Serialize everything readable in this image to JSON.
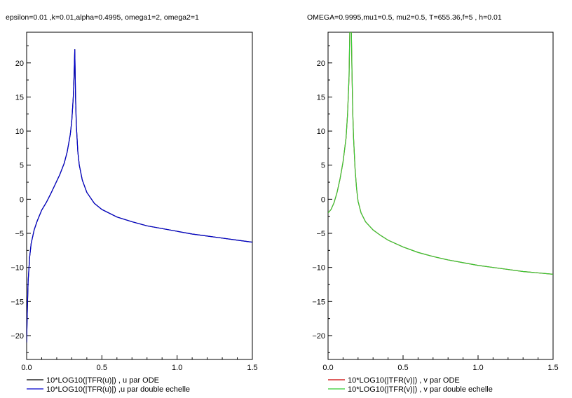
{
  "chart_data": [
    {
      "type": "line",
      "title": "epsilon=0.01 ,k=0.01,alpha=0.4995, omega1=2, omega2=1",
      "xlim": [
        0,
        1.5
      ],
      "ylim": [
        -23.5,
        24.5
      ],
      "x_ticks": [
        0.0,
        0.5,
        1.0,
        1.5
      ],
      "x_tick_labels": [
        "0.0",
        "0.5",
        "1.0",
        "1.5"
      ],
      "y_ticks": [
        20,
        15,
        10,
        5,
        0,
        -5,
        -10,
        -15,
        -20
      ],
      "y_tick_labels": [
        "20",
        "15",
        "10",
        "5",
        "0",
        "−5",
        "−10",
        "−15",
        "−20"
      ],
      "grid": false,
      "legend_position": "below",
      "series": [
        {
          "name": "10*LOG10(|TFR(u)|) , u par ODE",
          "color": "#000000",
          "x": [
            0.0,
            0.005,
            0.01,
            0.02,
            0.03,
            0.05,
            0.07,
            0.1,
            0.13,
            0.16,
            0.19,
            0.22,
            0.25,
            0.27,
            0.29,
            0.3,
            0.31,
            0.315,
            0.32,
            0.325,
            0.33,
            0.34,
            0.35,
            0.37,
            0.4,
            0.45,
            0.5,
            0.6,
            0.7,
            0.8,
            0.9,
            1.0,
            1.1,
            1.2,
            1.3,
            1.4,
            1.5
          ],
          "y": [
            -21,
            -16,
            -12,
            -8.5,
            -6.5,
            -4.5,
            -3.2,
            -1.6,
            -0.5,
            0.8,
            2.2,
            3.6,
            5.3,
            7,
            9.5,
            11.5,
            15,
            18,
            22,
            15,
            11,
            7,
            5,
            2.8,
            1.0,
            -0.6,
            -1.5,
            -2.6,
            -3.3,
            -3.9,
            -4.3,
            -4.7,
            -5.1,
            -5.4,
            -5.7,
            -6.0,
            -6.3
          ]
        },
        {
          "name": "10*LOG10(|TFR(u)|) ,u par double echelle",
          "color": "#0000cc",
          "x": [
            0.0,
            0.005,
            0.01,
            0.02,
            0.03,
            0.05,
            0.07,
            0.1,
            0.13,
            0.16,
            0.19,
            0.22,
            0.25,
            0.27,
            0.29,
            0.3,
            0.31,
            0.315,
            0.32,
            0.325,
            0.33,
            0.34,
            0.35,
            0.37,
            0.4,
            0.45,
            0.5,
            0.6,
            0.7,
            0.8,
            0.9,
            1.0,
            1.1,
            1.2,
            1.3,
            1.4,
            1.5
          ],
          "y": [
            -21,
            -16,
            -12,
            -8.5,
            -6.5,
            -4.5,
            -3.2,
            -1.6,
            -0.5,
            0.8,
            2.2,
            3.6,
            5.3,
            7,
            9.5,
            11.5,
            15,
            18,
            22,
            15,
            11,
            7,
            5,
            2.8,
            1.0,
            -0.6,
            -1.5,
            -2.6,
            -3.3,
            -3.9,
            -4.3,
            -4.7,
            -5.1,
            -5.4,
            -5.7,
            -6.0,
            -6.3
          ]
        }
      ]
    },
    {
      "type": "line",
      "title": "OMEGA=0.9995,mu1=0.5, mu2=0.5, T=655.36,f=5 , h=0.01",
      "xlim": [
        0,
        1.5
      ],
      "ylim": [
        -23.5,
        24.5
      ],
      "x_ticks": [
        0.0,
        0.5,
        1.0,
        1.5
      ],
      "x_tick_labels": [
        "0.0",
        "0.5",
        "1.0",
        "1.5"
      ],
      "y_ticks": [
        20,
        15,
        10,
        5,
        0,
        -5,
        -10,
        -15,
        -20
      ],
      "y_tick_labels": [
        "20",
        "15",
        "10",
        "5",
        "0",
        "−5",
        "−10",
        "−15",
        "−20"
      ],
      "grid": false,
      "legend_position": "below",
      "series": [
        {
          "name": "10*LOG10(|TFR(v)|) , v par ODE",
          "color": "#cc0000",
          "x": [
            0.0,
            0.02,
            0.04,
            0.06,
            0.08,
            0.1,
            0.12,
            0.13,
            0.14,
            0.145,
            0.15,
            0.155,
            0.16,
            0.165,
            0.17,
            0.18,
            0.19,
            0.2,
            0.22,
            0.25,
            0.3,
            0.35,
            0.4,
            0.5,
            0.6,
            0.7,
            0.8,
            0.9,
            1.0,
            1.1,
            1.2,
            1.3,
            1.4,
            1.5
          ],
          "y": [
            -2,
            -1.5,
            -0.5,
            1.0,
            3.0,
            5.5,
            9.0,
            12.5,
            18.0,
            25.0,
            30.0,
            25.0,
            18.0,
            12.5,
            9.0,
            4.5,
            1.6,
            -0.3,
            -2.0,
            -3.3,
            -4.5,
            -5.3,
            -6.0,
            -7.0,
            -7.8,
            -8.4,
            -8.9,
            -9.3,
            -9.7,
            -10.0,
            -10.3,
            -10.6,
            -10.8,
            -11.0
          ]
        },
        {
          "name": "10*LOG10(|TFR(v)|) , v  par double echelle",
          "color": "#33cc33",
          "x": [
            0.0,
            0.02,
            0.04,
            0.06,
            0.08,
            0.1,
            0.12,
            0.13,
            0.14,
            0.145,
            0.15,
            0.155,
            0.16,
            0.165,
            0.17,
            0.18,
            0.19,
            0.2,
            0.22,
            0.25,
            0.3,
            0.35,
            0.4,
            0.5,
            0.6,
            0.7,
            0.8,
            0.9,
            1.0,
            1.1,
            1.2,
            1.3,
            1.4,
            1.5
          ],
          "y": [
            -2,
            -1.5,
            -0.5,
            1.0,
            3.0,
            5.5,
            9.0,
            12.5,
            18.0,
            25.0,
            30.0,
            25.0,
            18.0,
            12.5,
            9.0,
            4.5,
            1.6,
            -0.3,
            -2.0,
            -3.3,
            -4.5,
            -5.3,
            -6.0,
            -7.0,
            -7.8,
            -8.4,
            -8.9,
            -9.3,
            -9.7,
            -10.0,
            -10.3,
            -10.6,
            -10.8,
            -11.0
          ]
        }
      ]
    }
  ]
}
